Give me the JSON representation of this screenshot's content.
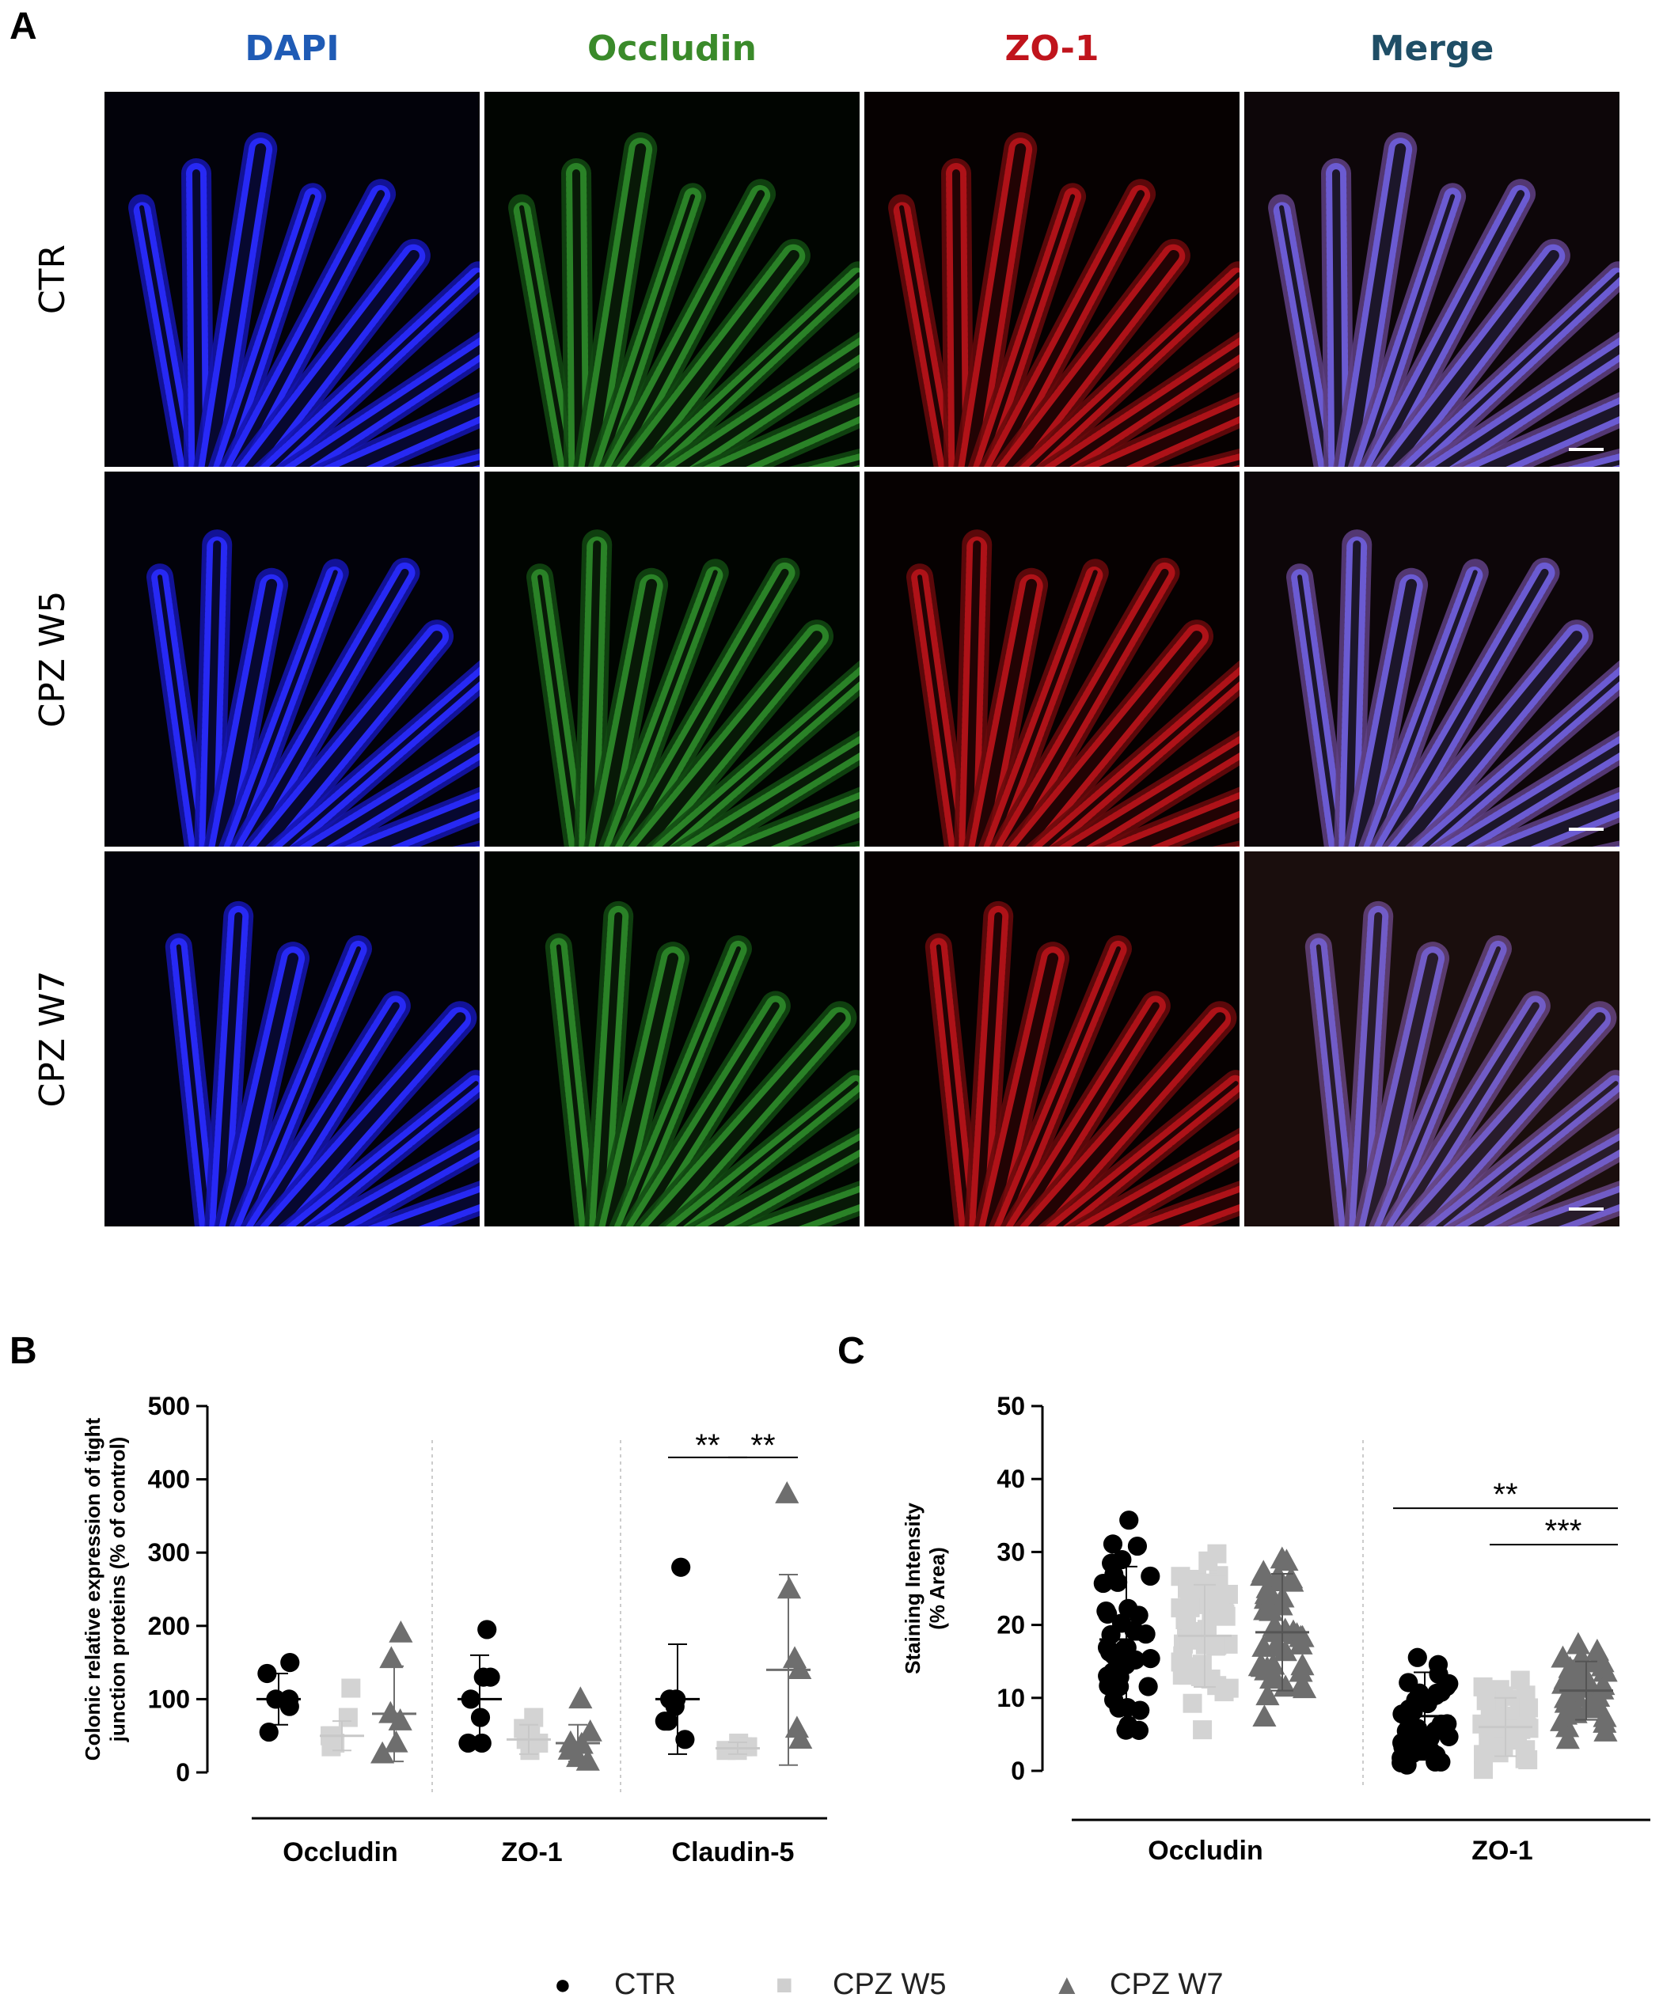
{
  "panel_a": {
    "letter": "A",
    "columns": [
      {
        "label": "DAPI",
        "color": "#1f5bb5"
      },
      {
        "label": "Occludin",
        "color": "#3a8a2a"
      },
      {
        "label": "ZO-1",
        "color": "#c0141c"
      },
      {
        "label": "Merge",
        "color": "#1f4e66"
      }
    ],
    "rows": [
      "CTR",
      "CPZ W5",
      "CPZ W7"
    ]
  },
  "chart_data": [
    {
      "panel": "B",
      "type": "scatter",
      "ylabel": "Colonic relative expression of tight junction proteins (% of control)",
      "ylim": [
        0,
        500
      ],
      "yticks": [
        0,
        100,
        200,
        300,
        400,
        500
      ],
      "groups": [
        "Occludin",
        "ZO-1",
        "Claudin-5"
      ],
      "series": [
        {
          "name": "CTR",
          "color": "#000000",
          "values": [
            [
              100,
              150,
              135,
              100,
              90,
              55
            ],
            [
              100,
              195,
              130,
              130,
              75,
              40,
              40
            ],
            [
              100,
              280,
              100,
              90,
              70,
              70,
              45
            ]
          ],
          "mean": [
            100,
            100,
            100
          ],
          "sd": [
            35,
            60,
            75
          ]
        },
        {
          "name": "CPZ W5",
          "color": "#d3d3d3",
          "values": [
            [
              50,
              115,
              75,
              50,
              40,
              35
            ],
            [
              45,
              75,
              60,
              50,
              40,
              30
            ],
            [
              35,
              40,
              35,
              30,
              30
            ]
          ],
          "mean": [
            50,
            45,
            33
          ],
          "sd": [
            20,
            20,
            8
          ]
        },
        {
          "name": "CPZ W7",
          "color": "#6e6e6e",
          "values": [
            [
              80,
              190,
              155,
              70,
              40,
              25
            ],
            [
              38,
              100,
              55,
              40,
              30,
              20,
              15
            ],
            [
              140,
              380,
              250,
              155,
              60,
              45
            ]
          ],
          "mean": [
            80,
            40,
            140
          ],
          "sd": [
            65,
            25,
            130
          ]
        }
      ],
      "significance": [
        {
          "group": "Claudin-5",
          "from": "CTR",
          "to": "CPZ W5",
          "label": "**"
        },
        {
          "group": "Claudin-5",
          "from": "CPZ W5",
          "to": "CPZ W7",
          "label": "**"
        }
      ]
    },
    {
      "panel": "C",
      "type": "scatter",
      "ylabel": "Staining Intensity\n(% Area)",
      "ylim": [
        0,
        50
      ],
      "yticks": [
        0,
        10,
        20,
        30,
        40,
        50
      ],
      "groups": [
        "Occludin",
        "ZO-1"
      ],
      "series": [
        {
          "name": "CTR",
          "color": "#000000",
          "mean": [
            18,
            7.5
          ],
          "sd": [
            10,
            6
          ]
        },
        {
          "name": "CPZ W5",
          "color": "#d3d3d3",
          "mean": [
            18.5,
            6
          ],
          "sd": [
            7,
            4
          ]
        },
        {
          "name": "CPZ W7",
          "color": "#6e6e6e",
          "mean": [
            19,
            11
          ],
          "sd": [
            8,
            4
          ]
        }
      ],
      "significance": [
        {
          "group": "ZO-1",
          "from": "CTR",
          "to": "CPZ W7",
          "label": "**"
        },
        {
          "group": "ZO-1",
          "from": "CPZ W5",
          "to": "CPZ W7",
          "label": "***"
        }
      ]
    }
  ],
  "panel_b": {
    "letter": "B"
  },
  "panel_c": {
    "letter": "C"
  },
  "legend": [
    {
      "label": "CTR",
      "symbol": "●",
      "color": "#000000"
    },
    {
      "label": "CPZ W5",
      "symbol": "■",
      "color": "#cfcfcf"
    },
    {
      "label": "CPZ W7",
      "symbol": "▲",
      "color": "#6e6e6e"
    }
  ]
}
